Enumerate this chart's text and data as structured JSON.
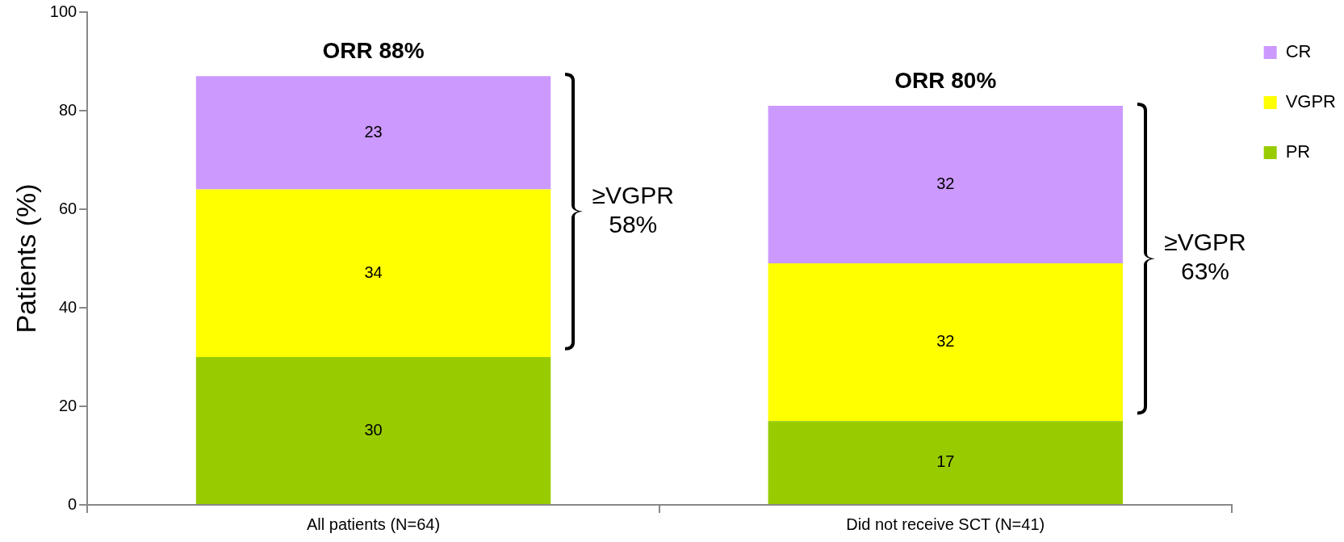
{
  "chart_data": {
    "type": "bar",
    "stacked": true,
    "ylabel": "Patients (%)",
    "categories": [
      "All patients (N=64)",
      "Did not receive SCT (N=41)"
    ],
    "series": [
      {
        "name": "PR",
        "color": "#99cc00",
        "values": [
          30,
          17
        ]
      },
      {
        "name": "VGPR",
        "color": "#ffff00",
        "values": [
          34,
          32
        ]
      },
      {
        "name": "CR",
        "color": "#cc99ff",
        "values": [
          23,
          32
        ]
      }
    ],
    "ylim": [
      0,
      100
    ],
    "yticks": [
      0,
      20,
      40,
      60,
      80,
      100
    ],
    "grid": false,
    "legend": "top right",
    "data_labels": true,
    "annotations": [
      "ORR 88%",
      "ORR 80%",
      "≥VGPR 58%",
      "≥VGPR 63%"
    ]
  }
}
